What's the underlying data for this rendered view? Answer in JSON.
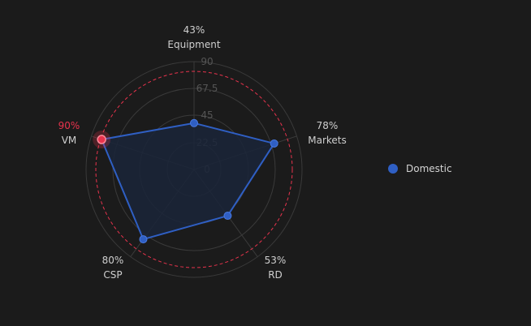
{
  "chart_data": {
    "type": "radar",
    "axes": [
      "Equipment",
      "Markets",
      "RD",
      "CSP",
      "VM"
    ],
    "max": 90,
    "ticks": [
      0,
      22.5,
      45,
      67.5,
      90
    ],
    "series": [
      {
        "name": "Domestic",
        "values_percent": [
          43,
          78,
          53,
          80,
          90
        ],
        "labels": [
          "43%",
          "78%",
          "53%",
          "80%",
          "90%"
        ],
        "color": "#2f5fc4",
        "fill": "#1a2538"
      }
    ],
    "highlight": {
      "axis": "VM",
      "color": "#e8334d"
    },
    "threshold_ring_value": 78,
    "threshold_color": "#e8334d",
    "grid_color": "#3a3a3a",
    "label_color": "#cfcfcf",
    "tick_color": "#555555",
    "legend_position": "right"
  },
  "legend": {
    "items": [
      {
        "label": "Domestic",
        "color": "#2f5fc4"
      }
    ]
  }
}
